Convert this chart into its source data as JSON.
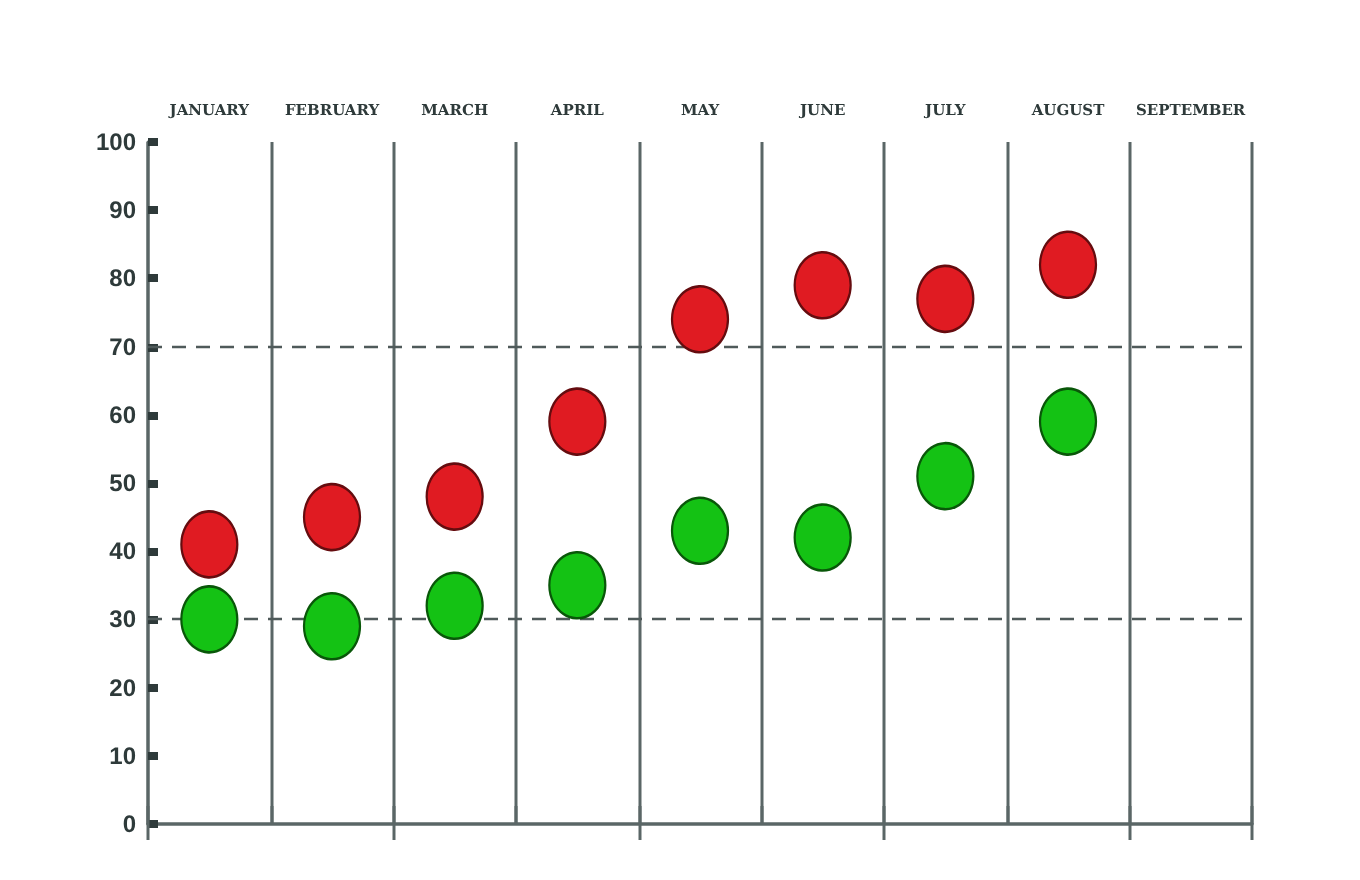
{
  "chart_data": {
    "type": "scatter",
    "categories": [
      "JANUARY",
      "FEBRUARY",
      "MARCH",
      "APRIL",
      "MAY",
      "JUNE",
      "JULY",
      "AUGUST",
      "SEPTEMBER"
    ],
    "series": [
      {
        "color": "#e01b22",
        "values": [
          41,
          45,
          48,
          59,
          74,
          79,
          77,
          82,
          null
        ]
      },
      {
        "color": "#14c214",
        "values": [
          30,
          29,
          32,
          35,
          43,
          42,
          51,
          59,
          null
        ]
      }
    ],
    "ylim": [
      0,
      100
    ],
    "yticks": [
      0,
      10,
      20,
      30,
      40,
      50,
      60,
      70,
      80,
      90,
      100
    ],
    "grid": "x",
    "marker": "circle",
    "ref_lines": [
      {
        "axis": "y",
        "value": 70,
        "line_style": "dashed",
        "color": "#4f5a5a"
      },
      {
        "axis": "y",
        "value": 30,
        "line_style": "dashed",
        "color": "#4f5a5a"
      }
    ]
  }
}
